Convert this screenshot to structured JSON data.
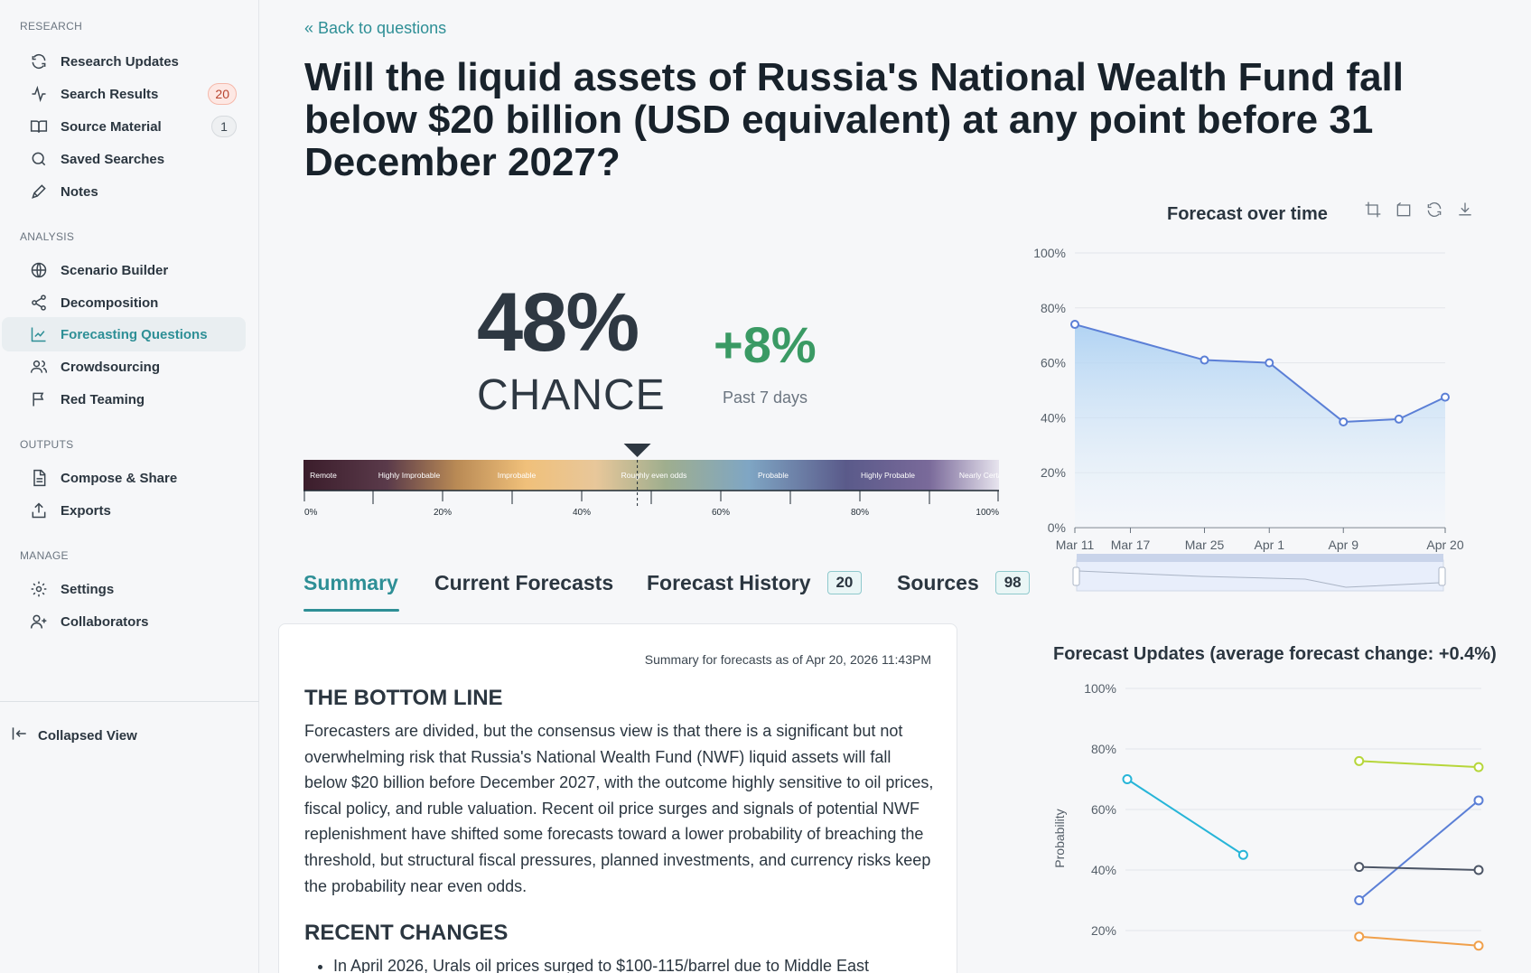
{
  "sidebar": {
    "sections": [
      {
        "label": "RESEARCH",
        "items": [
          {
            "label": "Research Updates",
            "icon": "refresh-icon"
          },
          {
            "label": "Search Results",
            "icon": "pulse-icon",
            "badge": "20"
          },
          {
            "label": "Source Material",
            "icon": "book-icon",
            "badge": "1"
          },
          {
            "label": "Saved Searches",
            "icon": "search-icon"
          },
          {
            "label": "Notes",
            "icon": "pen-icon"
          }
        ]
      },
      {
        "label": "ANALYSIS",
        "items": [
          {
            "label": "Scenario Builder",
            "icon": "globe-icon"
          },
          {
            "label": "Decomposition",
            "icon": "share-icon"
          },
          {
            "label": "Forecasting Questions",
            "icon": "chart-icon"
          },
          {
            "label": "Crowdsourcing",
            "icon": "users-icon"
          },
          {
            "label": "Red Teaming",
            "icon": "flag-icon"
          }
        ]
      },
      {
        "label": "OUTPUTS",
        "items": [
          {
            "label": "Compose & Share",
            "icon": "document-icon"
          },
          {
            "label": "Exports",
            "icon": "upload-icon"
          }
        ]
      },
      {
        "label": "MANAGE",
        "items": [
          {
            "label": "Settings",
            "icon": "gear-icon"
          },
          {
            "label": "Collaborators",
            "icon": "user-plus-icon"
          }
        ]
      }
    ],
    "collapsed_view": "Collapsed View"
  },
  "header": {
    "back": "« Back to questions",
    "title": "Will the liquid assets of Russia's National Wealth Fund fall below $20 billion (USD equivalent) at any point before 31 December 2027?"
  },
  "forecast": {
    "percent": "48%",
    "chance": "CHANCE",
    "delta": "+8%",
    "delta_period": "Past 7 days",
    "probability": 0.48
  },
  "scale": {
    "bands": [
      "Remote",
      "Highly Improbable",
      "Improbable",
      "Roughly even odds",
      "Probable",
      "Highly Probable",
      "Nearly Certain"
    ],
    "ticks": [
      "0%",
      "20%",
      "40%",
      "60%",
      "80%",
      "100%"
    ]
  },
  "tabs": [
    {
      "label": "Summary"
    },
    {
      "label": "Current Forecasts"
    },
    {
      "label": "Forecast History",
      "badge": "20"
    },
    {
      "label": "Sources",
      "badge": "98"
    }
  ],
  "summary": {
    "meta": "Summary for forecasts as of Apr 20, 2026 11:43PM",
    "bottom_line_heading": "THE BOTTOM LINE",
    "bottom_line": "Forecasters are divided, but the consensus view is that there is a significant but not overwhelming risk that Russia's National Wealth Fund (NWF) liquid assets will fall below $20 billion before December 2027, with the outcome highly sensitive to oil prices, fiscal policy, and ruble valuation. Recent oil price surges and signals of potential NWF replenishment have shifted some forecasts toward a lower probability of breaching the threshold, but structural fiscal pressures, planned investments, and currency risks keep the probability near even odds.",
    "recent_heading": "RECENT CHANGES",
    "recent_items": [
      "In April 2026, Urals oil prices surged to $100-115/barrel due to Middle East"
    ]
  },
  "chart_data": [
    {
      "type": "area",
      "title": "Forecast over time",
      "x": [
        "Mar 11",
        "Mar 25",
        "Apr 1",
        "Apr 9",
        "Apr 15",
        "Apr 20"
      ],
      "x_day": [
        0,
        14,
        21,
        29,
        35,
        40
      ],
      "y": [
        74,
        61,
        60,
        38.5,
        39.5,
        47.5
      ],
      "xtick_labels": [
        "Mar 11",
        "Mar 17",
        "Mar 25",
        "Apr 1",
        "Apr 9",
        "Apr 20"
      ],
      "xtick_day": [
        0,
        6,
        14,
        21,
        29,
        40
      ],
      "ylim": [
        0,
        100
      ],
      "yticks": [
        "0%",
        "20%",
        "40%",
        "60%",
        "80%",
        "100%"
      ],
      "color": "#5b7fd6"
    },
    {
      "type": "line",
      "title": "Forecast Updates (average forecast change: +0.4%)",
      "ylabel": "Probability",
      "ylim": [
        10,
        100
      ],
      "yticks": [
        "20%",
        "40%",
        "60%",
        "80%",
        "100%"
      ],
      "series": [
        {
          "color": "#27b5d8",
          "points": [
            [
              0.0,
              70
            ],
            [
              0.33,
              45
            ]
          ]
        },
        {
          "color": "#b6d63a",
          "points": [
            [
              0.66,
              76
            ],
            [
              1.0,
              74
            ]
          ]
        },
        {
          "color": "#5b7fd6",
          "points": [
            [
              0.66,
              30
            ],
            [
              1.0,
              63
            ]
          ]
        },
        {
          "color": "#4c5566",
          "points": [
            [
              0.66,
              41
            ],
            [
              1.0,
              40
            ]
          ]
        },
        {
          "color": "#f0a04b",
          "points": [
            [
              0.66,
              18
            ],
            [
              1.0,
              15
            ]
          ]
        }
      ]
    }
  ]
}
